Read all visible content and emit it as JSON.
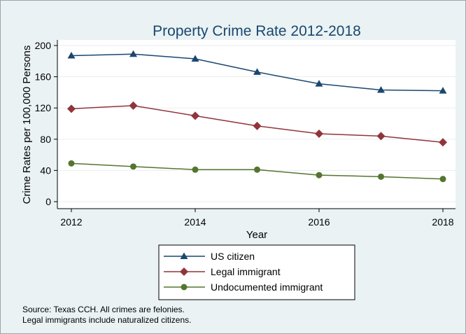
{
  "chart_data": {
    "type": "line",
    "title": "Property Crime Rate 2012-2018",
    "xlabel": "Year",
    "ylabel": "Crime Rates per 100,000 Persons",
    "x": [
      2012,
      2013,
      2014,
      2015,
      2016,
      2017,
      2018
    ],
    "xticks": [
      "2012",
      "2014",
      "2016",
      "2018"
    ],
    "yticks": [
      "0",
      "40",
      "80",
      "120",
      "160",
      "200"
    ],
    "xlim": [
      2012,
      2018
    ],
    "ylim": [
      0,
      200
    ],
    "grid": "horizontal",
    "legend_position": "bottom",
    "series": [
      {
        "name": "US citizen",
        "values": [
          187,
          189,
          183,
          166,
          151,
          143,
          142
        ],
        "color": "#1a476f",
        "marker": "triangle"
      },
      {
        "name": "Legal immigrant",
        "values": [
          119,
          123,
          110,
          97,
          87,
          84,
          76
        ],
        "color": "#90353b",
        "marker": "diamond"
      },
      {
        "name": "Undocumented immigrant",
        "values": [
          49,
          45,
          41,
          41,
          34,
          32,
          29
        ],
        "color": "#55752f",
        "marker": "circle"
      }
    ]
  },
  "notes": [
    "Source: Texas CCH. All crimes are felonies.",
    "Legal immigrants include naturalized citizens."
  ]
}
